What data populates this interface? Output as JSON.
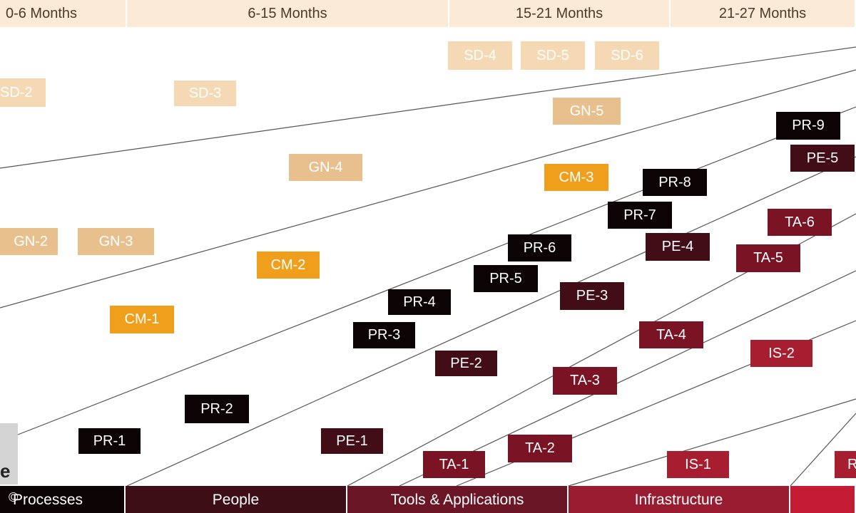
{
  "header": {
    "periods": [
      "0-6 Months",
      "6-15 Months",
      "15-21 Months",
      "21-27 Months"
    ]
  },
  "footer": {
    "categories": [
      "Processes",
      "People",
      "Tools & Applications",
      "Infrastructure",
      ""
    ]
  },
  "gray_tab_letter": "e",
  "copyright": "©",
  "colors": {
    "header_bg": "#fbead6",
    "sd": "#f5d8b4",
    "gn": "#e7c08e",
    "cm": "#ef9f1c",
    "pr": "#0b0304",
    "pe": "#420d16",
    "ta": "#7a1424",
    "is": "#a61e30",
    "footer_processes": "#0b0304",
    "footer_people": "#3d0e16",
    "footer_tools": "#6b1626",
    "footer_infra": "#991c30",
    "footer_last": "#c41c34"
  },
  "items": [
    {
      "label": "SD-2",
      "group": "sd"
    },
    {
      "label": "SD-3",
      "group": "sd"
    },
    {
      "label": "SD-4",
      "group": "sd"
    },
    {
      "label": "SD-5",
      "group": "sd"
    },
    {
      "label": "SD-6",
      "group": "sd"
    },
    {
      "label": "GN-2",
      "group": "gn"
    },
    {
      "label": "GN-3",
      "group": "gn"
    },
    {
      "label": "GN-4",
      "group": "gn"
    },
    {
      "label": "GN-5",
      "group": "gn"
    },
    {
      "label": "CM-1",
      "group": "cm"
    },
    {
      "label": "CM-2",
      "group": "cm"
    },
    {
      "label": "CM-3",
      "group": "cm"
    },
    {
      "label": "PR-1",
      "group": "pr"
    },
    {
      "label": "PR-2",
      "group": "pr"
    },
    {
      "label": "PR-3",
      "group": "pr"
    },
    {
      "label": "PR-4",
      "group": "pr"
    },
    {
      "label": "PR-5",
      "group": "pr"
    },
    {
      "label": "PR-6",
      "group": "pr"
    },
    {
      "label": "PR-7",
      "group": "pr"
    },
    {
      "label": "PR-8",
      "group": "pr"
    },
    {
      "label": "PR-9",
      "group": "pr"
    },
    {
      "label": "PE-1",
      "group": "pe"
    },
    {
      "label": "PE-2",
      "group": "pe"
    },
    {
      "label": "PE-3",
      "group": "pe"
    },
    {
      "label": "PE-4",
      "group": "pe"
    },
    {
      "label": "PE-5",
      "group": "pe"
    },
    {
      "label": "TA-1",
      "group": "ta"
    },
    {
      "label": "TA-2",
      "group": "ta"
    },
    {
      "label": "TA-3",
      "group": "ta"
    },
    {
      "label": "TA-4",
      "group": "ta"
    },
    {
      "label": "TA-5",
      "group": "ta"
    },
    {
      "label": "TA-6",
      "group": "ta"
    },
    {
      "label": "IS-1",
      "group": "is"
    },
    {
      "label": "IS-2",
      "group": "is"
    },
    {
      "label": "R",
      "group": "is"
    }
  ]
}
